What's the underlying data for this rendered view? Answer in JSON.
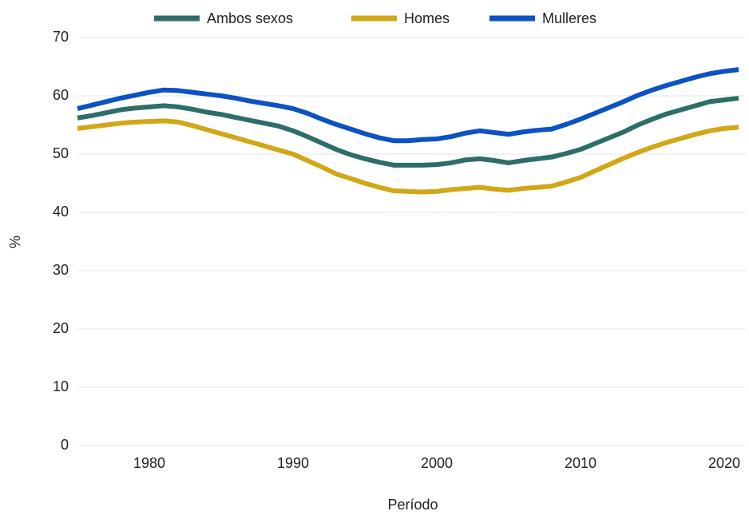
{
  "chart_data": {
    "type": "line",
    "x": [
      1975,
      1976,
      1977,
      1978,
      1979,
      1980,
      1981,
      1982,
      1983,
      1984,
      1985,
      1986,
      1987,
      1988,
      1989,
      1990,
      1991,
      1992,
      1993,
      1994,
      1995,
      1996,
      1997,
      1998,
      1999,
      2000,
      2001,
      2002,
      2003,
      2004,
      2005,
      2006,
      2007,
      2008,
      2009,
      2010,
      2011,
      2012,
      2013,
      2014,
      2015,
      2016,
      2017,
      2018,
      2019,
      2020,
      2021
    ],
    "series": [
      {
        "name": "Ambos sexos",
        "color": "#2e6e69",
        "values": [
          56.2,
          56.6,
          57.1,
          57.6,
          57.9,
          58.1,
          58.3,
          58.1,
          57.7,
          57.2,
          56.8,
          56.3,
          55.8,
          55.3,
          54.8,
          54,
          53,
          51.9,
          50.8,
          49.9,
          49.2,
          48.6,
          48.1,
          48.1,
          48.1,
          48.2,
          48.5,
          49,
          49.2,
          48.9,
          48.5,
          48.9,
          49.2,
          49.5,
          50.1,
          50.8,
          51.8,
          52.8,
          53.8,
          55,
          56,
          56.9,
          57.6,
          58.3,
          59,
          59.3,
          59.6
        ]
      },
      {
        "name": "Homes",
        "color": "#d2a717",
        "values": [
          54.4,
          54.7,
          55,
          55.3,
          55.5,
          55.6,
          55.7,
          55.5,
          54.9,
          54.2,
          53.5,
          52.8,
          52.1,
          51.4,
          50.7,
          50,
          48.9,
          47.8,
          46.6,
          45.8,
          45,
          44.3,
          43.7,
          43.6,
          43.5,
          43.6,
          43.9,
          44.1,
          44.3,
          44,
          43.8,
          44.1,
          44.3,
          44.5,
          45.2,
          46,
          47.1,
          48.2,
          49.3,
          50.3,
          51.2,
          52,
          52.7,
          53.4,
          54,
          54.4,
          54.6
        ]
      },
      {
        "name": "Mulleres",
        "color": "#0b52c2",
        "values": [
          57.8,
          58.4,
          59,
          59.6,
          60.1,
          60.6,
          61,
          60.9,
          60.6,
          60.3,
          60,
          59.6,
          59.1,
          58.7,
          58.3,
          57.8,
          57,
          56,
          55.1,
          54.3,
          53.5,
          52.8,
          52.3,
          52.3,
          52.5,
          52.6,
          53,
          53.6,
          54,
          53.7,
          53.4,
          53.8,
          54.1,
          54.3,
          55.1,
          56,
          57,
          58,
          59,
          60.1,
          61,
          61.8,
          62.5,
          63.2,
          63.8,
          64.2,
          64.5
        ]
      }
    ],
    "xlim": [
      1975,
      2021
    ],
    "xticks": [
      1980,
      1990,
      2000,
      2010,
      2020
    ],
    "ylim": [
      0,
      70
    ],
    "yticks": [
      0,
      10,
      20,
      30,
      40,
      50,
      60,
      70
    ],
    "grid": true,
    "legend": "top",
    "xlabel": "Período",
    "ylabel": "%"
  }
}
